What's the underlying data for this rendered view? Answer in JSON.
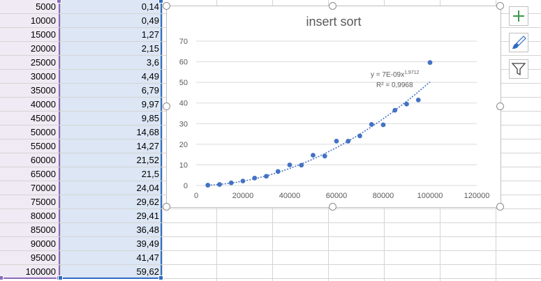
{
  "sheet": {
    "rows": [
      {
        "n": "5000",
        "t": "0,14"
      },
      {
        "n": "10000",
        "t": "0,49"
      },
      {
        "n": "15000",
        "t": "1,27"
      },
      {
        "n": "20000",
        "t": "2,15"
      },
      {
        "n": "25000",
        "t": "3,6"
      },
      {
        "n": "30000",
        "t": "4,49"
      },
      {
        "n": "35000",
        "t": "6,79"
      },
      {
        "n": "40000",
        "t": "9,97"
      },
      {
        "n": "45000",
        "t": "9,85"
      },
      {
        "n": "50000",
        "t": "14,68"
      },
      {
        "n": "55000",
        "t": "14,27"
      },
      {
        "n": "60000",
        "t": "21,52"
      },
      {
        "n": "65000",
        "t": "21,5"
      },
      {
        "n": "70000",
        "t": "24,04"
      },
      {
        "n": "75000",
        "t": "29,62"
      },
      {
        "n": "80000",
        "t": "29,41"
      },
      {
        "n": "85000",
        "t": "36,48"
      },
      {
        "n": "90000",
        "t": "39,49"
      },
      {
        "n": "95000",
        "t": "41,47"
      },
      {
        "n": "100000",
        "t": "59,62"
      }
    ]
  },
  "chart_data": {
    "type": "scatter",
    "title": "insert sort",
    "xlabel": "",
    "ylabel": "",
    "xlim": [
      0,
      120000
    ],
    "ylim": [
      0,
      70
    ],
    "x_ticks": [
      "0",
      "20000",
      "40000",
      "60000",
      "80000",
      "100000",
      "120000"
    ],
    "y_ticks": [
      "0",
      "10",
      "20",
      "30",
      "40",
      "50",
      "60",
      "70"
    ],
    "grid": true,
    "x": [
      5000,
      10000,
      15000,
      20000,
      25000,
      30000,
      35000,
      40000,
      45000,
      50000,
      55000,
      60000,
      65000,
      70000,
      75000,
      80000,
      85000,
      90000,
      95000,
      100000
    ],
    "y": [
      0.14,
      0.49,
      1.27,
      2.15,
      3.6,
      4.49,
      6.79,
      9.97,
      9.85,
      14.68,
      14.27,
      21.52,
      21.5,
      24.04,
      29.62,
      29.41,
      36.48,
      39.49,
      41.47,
      59.62
    ],
    "trendline": {
      "type": "power",
      "coef": 7e-09,
      "exponent": 1.9712,
      "equation_base": "y = 7E-09x",
      "equation_exp": "1,9712",
      "r2_label": "R² = 0,9968"
    },
    "marker_color": "#4472c4",
    "trend_color": "#4472c4"
  },
  "side_buttons": [
    {
      "icon": "plus-icon",
      "label": "Chart Elements"
    },
    {
      "icon": "brush-icon",
      "label": "Chart Styles"
    },
    {
      "icon": "filter-icon",
      "label": "Chart Filters"
    }
  ]
}
